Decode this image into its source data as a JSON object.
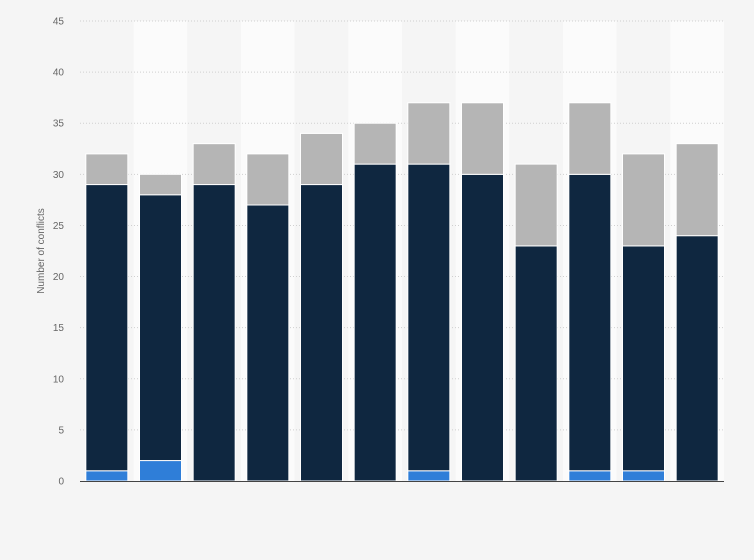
{
  "chart_data": {
    "type": "bar",
    "stacked": true,
    "title": "",
    "xlabel": "",
    "ylabel": "Number of conflicts",
    "ylim": [
      0,
      45
    ],
    "yticks": [
      0,
      5,
      10,
      15,
      20,
      25,
      30,
      35,
      40,
      45
    ],
    "categories": [
      "",
      "",
      "",
      "",
      "",
      "",
      "",
      "",
      "",
      "",
      "",
      ""
    ],
    "grid": "horizontal dotted",
    "legend": "none",
    "series": [
      {
        "color": "#2f7ed8",
        "values": [
          1,
          2,
          0,
          0,
          0,
          0,
          1,
          0,
          0,
          1,
          1,
          0
        ]
      },
      {
        "color": "#0f2740",
        "values": [
          28,
          26,
          29,
          27,
          29,
          31,
          30,
          30,
          23,
          29,
          22,
          24
        ]
      },
      {
        "color": "#b5b5b5",
        "values": [
          3,
          2,
          4,
          5,
          5,
          4,
          6,
          7,
          8,
          7,
          9,
          9
        ]
      }
    ]
  }
}
